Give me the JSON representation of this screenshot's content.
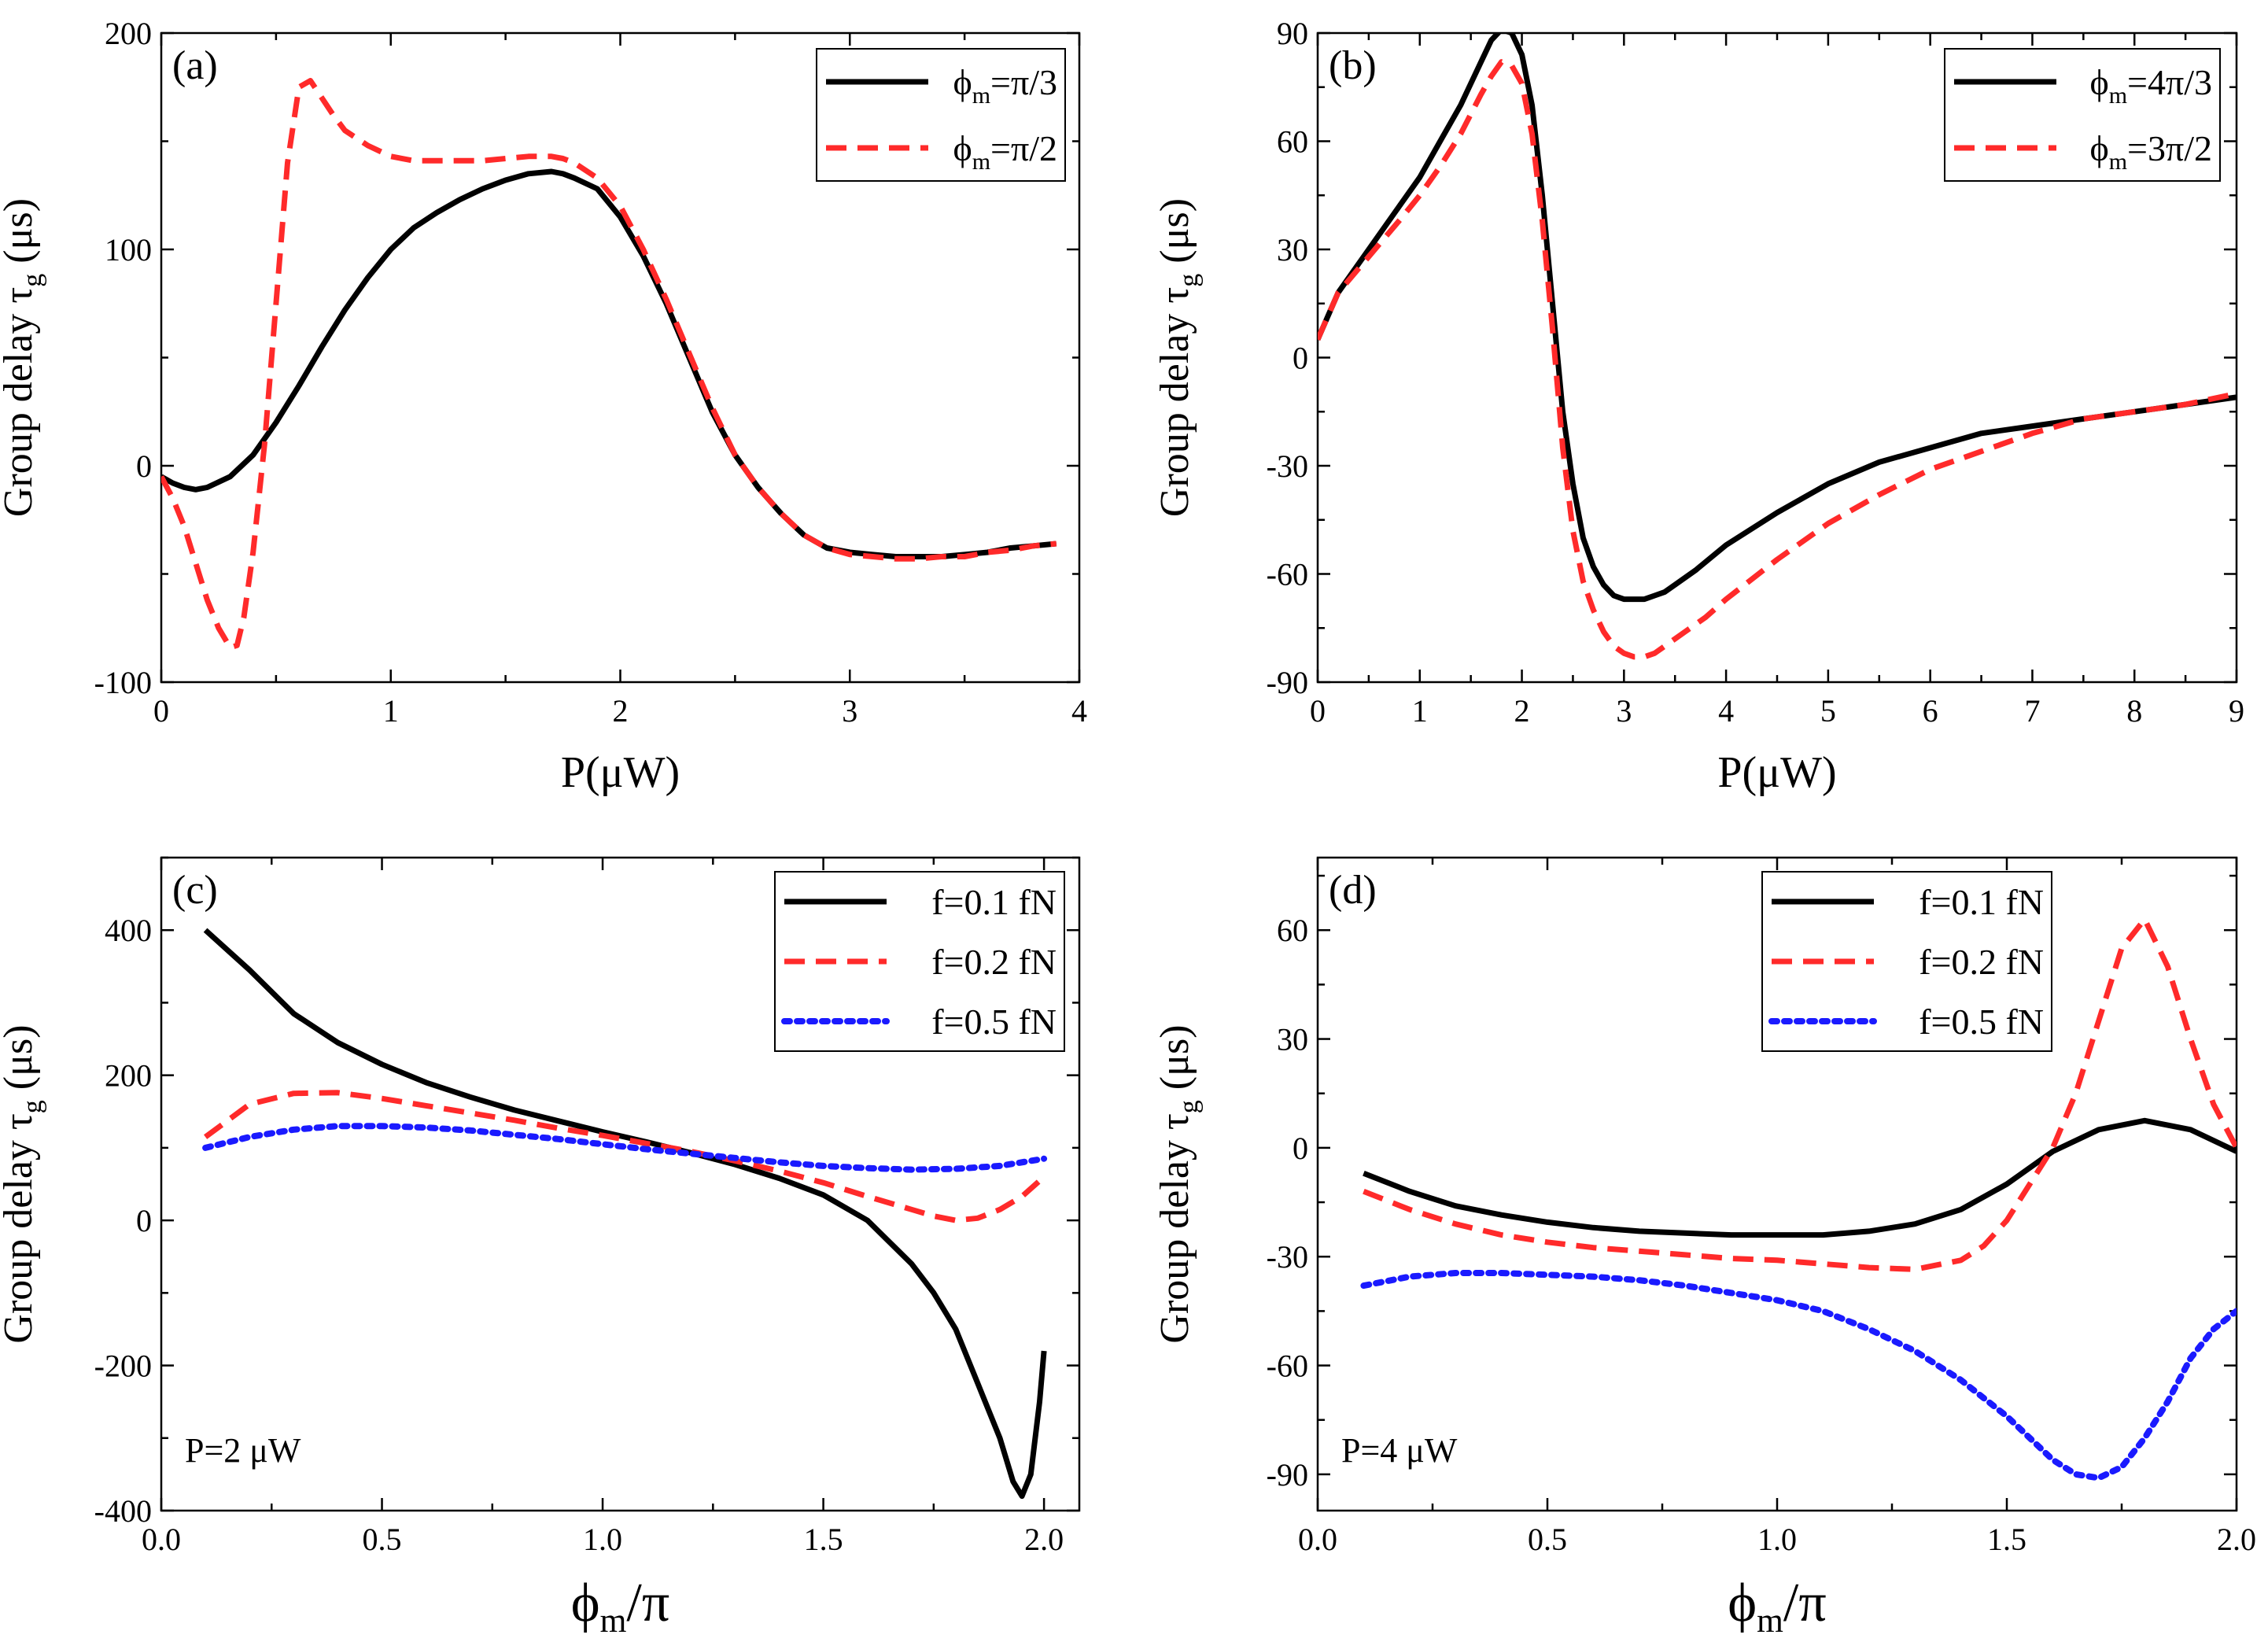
{
  "chart_data": [
    {
      "panel_label": "(a)",
      "type": "line",
      "xlabel": "P(μW)",
      "ylabel_main": "Group delay τ",
      "ylabel_sub": "g",
      "ylabel_unit": " (μs)",
      "xlim": [
        0,
        4
      ],
      "ylim": [
        -100,
        200
      ],
      "xticks": [
        0,
        1,
        2,
        3,
        4
      ],
      "xtick_labels": [
        "0",
        "1",
        "2",
        "3",
        "4"
      ],
      "yticks": [
        -100,
        0,
        100,
        200
      ],
      "ytick_labels": [
        "-100",
        "0",
        "100",
        "200"
      ],
      "legend_position": "top-right",
      "series": [
        {
          "name": "ϕm=π/3",
          "name_main": "ϕ",
          "name_sub": "m",
          "name_rest": "=π/3",
          "color": "#000000",
          "style": "solid",
          "x": [
            0,
            0.05,
            0.1,
            0.15,
            0.2,
            0.3,
            0.4,
            0.5,
            0.6,
            0.7,
            0.8,
            0.9,
            1.0,
            1.1,
            1.2,
            1.3,
            1.4,
            1.5,
            1.6,
            1.7,
            1.75,
            1.8,
            1.9,
            2.0,
            2.1,
            2.2,
            2.3,
            2.4,
            2.5,
            2.6,
            2.7,
            2.8,
            2.9,
            3.0,
            3.1,
            3.2,
            3.3,
            3.4,
            3.5,
            3.6,
            3.7,
            3.8,
            3.9
          ],
          "y": [
            -5,
            -8,
            -10,
            -11,
            -10,
            -5,
            5,
            20,
            37,
            55,
            72,
            87,
            100,
            110,
            117,
            123,
            128,
            132,
            135,
            136,
            135,
            133,
            128,
            115,
            97,
            75,
            50,
            25,
            5,
            -10,
            -22,
            -32,
            -38,
            -40,
            -41,
            -42,
            -42,
            -42,
            -41,
            -40,
            -38,
            -37,
            -36
          ]
        },
        {
          "name": "ϕm=π/2",
          "name_main": "ϕ",
          "name_sub": "m",
          "name_rest": "=π/2",
          "color": "#ff2a2a",
          "style": "dashed",
          "x": [
            0,
            0.05,
            0.1,
            0.15,
            0.2,
            0.25,
            0.3,
            0.33,
            0.36,
            0.4,
            0.45,
            0.5,
            0.55,
            0.6,
            0.65,
            0.7,
            0.75,
            0.8,
            0.9,
            1.0,
            1.1,
            1.2,
            1.3,
            1.4,
            1.5,
            1.6,
            1.7,
            1.75,
            1.8,
            1.9,
            2.0,
            2.1,
            2.2,
            2.3,
            2.4,
            2.5,
            2.6,
            2.7,
            2.8,
            2.9,
            3.0,
            3.1,
            3.2,
            3.3,
            3.4,
            3.5,
            3.6,
            3.7,
            3.8,
            3.9
          ],
          "y": [
            -5,
            -15,
            -28,
            -45,
            -62,
            -75,
            -84,
            -83,
            -70,
            -40,
            10,
            75,
            140,
            175,
            178,
            170,
            162,
            155,
            148,
            143,
            141,
            141,
            141,
            141,
            142,
            143,
            143,
            142,
            140,
            133,
            120,
            100,
            77,
            52,
            27,
            5,
            -10,
            -22,
            -32,
            -38,
            -41,
            -42,
            -43,
            -43,
            -42,
            -42,
            -40,
            -39,
            -37,
            -36
          ]
        }
      ]
    },
    {
      "panel_label": "(b)",
      "type": "line",
      "xlabel": "P(μW)",
      "ylabel_main": "Group delay τ",
      "ylabel_sub": "g",
      "ylabel_unit": " (μs)",
      "xlim": [
        0,
        9
      ],
      "ylim": [
        -90,
        90
      ],
      "xticks": [
        0,
        1,
        2,
        3,
        4,
        5,
        6,
        7,
        8,
        9
      ],
      "xtick_labels": [
        "0",
        "1",
        "2",
        "3",
        "4",
        "5",
        "6",
        "7",
        "8",
        "9"
      ],
      "yticks": [
        -90,
        -60,
        -30,
        0,
        30,
        60,
        90
      ],
      "ytick_labels": [
        "-90",
        "-60",
        "-30",
        "0",
        "30",
        "60",
        "90"
      ],
      "legend_position": "top-right",
      "series": [
        {
          "name": "ϕm=4π/3",
          "name_main": "ϕ",
          "name_sub": "m",
          "name_rest": "=4π/3",
          "color": "#000000",
          "style": "solid",
          "x": [
            0,
            0.2,
            0.5,
            0.8,
            1.0,
            1.2,
            1.4,
            1.6,
            1.7,
            1.8,
            1.9,
            2.0,
            2.1,
            2.2,
            2.3,
            2.4,
            2.5,
            2.6,
            2.7,
            2.8,
            2.9,
            3.0,
            3.1,
            3.2,
            3.3,
            3.4,
            3.5,
            3.7,
            4.0,
            4.5,
            5.0,
            5.5,
            6.0,
            6.5,
            7.0,
            7.5,
            8.0,
            8.5,
            9.0
          ],
          "y": [
            5,
            18,
            30,
            42,
            50,
            60,
            70,
            82,
            88,
            91,
            90,
            84,
            70,
            45,
            15,
            -15,
            -35,
            -50,
            -58,
            -63,
            -66,
            -67,
            -67,
            -67,
            -66,
            -65,
            -63,
            -59,
            -52,
            -43,
            -35,
            -29,
            -25,
            -21,
            -19,
            -17,
            -15,
            -13,
            -11
          ]
        },
        {
          "name": "ϕm=3π/2",
          "name_main": "ϕ",
          "name_sub": "m",
          "name_rest": "=3π/2",
          "color": "#ff2a2a",
          "style": "dashed",
          "x": [
            0,
            0.2,
            0.5,
            0.8,
            1.0,
            1.2,
            1.4,
            1.6,
            1.7,
            1.8,
            1.9,
            2.0,
            2.1,
            2.2,
            2.3,
            2.4,
            2.5,
            2.6,
            2.7,
            2.8,
            2.9,
            3.0,
            3.1,
            3.2,
            3.3,
            3.4,
            3.6,
            3.8,
            4.0,
            4.5,
            5.0,
            5.5,
            6.0,
            6.5,
            7.0,
            7.5,
            8.0,
            8.5,
            9.0
          ],
          "y": [
            5,
            18,
            28,
            38,
            45,
            53,
            62,
            73,
            78,
            82,
            81,
            76,
            62,
            38,
            8,
            -25,
            -48,
            -62,
            -70,
            -76,
            -80,
            -82,
            -83,
            -83,
            -82,
            -80,
            -76,
            -72,
            -67,
            -56,
            -46,
            -38,
            -31,
            -26,
            -21,
            -17,
            -15,
            -13,
            -10
          ]
        }
      ]
    },
    {
      "panel_label": "(c)",
      "type": "line",
      "xlabel_main": "ϕ",
      "xlabel_sub": "m",
      "xlabel_rest": "/π",
      "ylabel_main": "Group delay τ",
      "ylabel_sub": "g",
      "ylabel_unit": " (μs)",
      "xlim": [
        0,
        2.08
      ],
      "ylim": [
        -400,
        500
      ],
      "xticks": [
        0,
        0.5,
        1.0,
        1.5,
        2.0
      ],
      "xtick_labels": [
        "0.0",
        "0.5",
        "1.0",
        "1.5",
        "2.0"
      ],
      "yticks": [
        -400,
        -200,
        0,
        200,
        400
      ],
      "ytick_labels": [
        "-400",
        "-200",
        "0",
        "200",
        "400"
      ],
      "annotation": "P=2 μW",
      "legend_position": "top-right",
      "series": [
        {
          "name": "f=0.1 fN",
          "color": "#000000",
          "style": "solid",
          "x": [
            0.1,
            0.2,
            0.3,
            0.4,
            0.5,
            0.6,
            0.7,
            0.8,
            0.9,
            1.0,
            1.1,
            1.2,
            1.3,
            1.4,
            1.5,
            1.6,
            1.7,
            1.75,
            1.8,
            1.85,
            1.9,
            1.93,
            1.95,
            1.97,
            1.99,
            2.0
          ],
          "y": [
            400,
            345,
            285,
            245,
            215,
            190,
            170,
            152,
            137,
            122,
            108,
            93,
            77,
            58,
            35,
            0,
            -60,
            -100,
            -150,
            -225,
            -300,
            -360,
            -380,
            -350,
            -250,
            -180
          ]
        },
        {
          "name": "f=0.2 fN",
          "color": "#ff2a2a",
          "style": "dashed",
          "x": [
            0.1,
            0.2,
            0.3,
            0.4,
            0.5,
            0.6,
            0.7,
            0.8,
            0.9,
            1.0,
            1.1,
            1.2,
            1.3,
            1.4,
            1.5,
            1.6,
            1.7,
            1.75,
            1.8,
            1.85,
            1.9,
            1.95,
            2.0
          ],
          "y": [
            115,
            160,
            175,
            176,
            168,
            158,
            148,
            138,
            127,
            117,
            106,
            95,
            82,
            68,
            52,
            33,
            15,
            6,
            0,
            3,
            15,
            33,
            60
          ]
        },
        {
          "name": "f=0.5 fN",
          "color": "#1a1aff",
          "style": "dotted",
          "x": [
            0.1,
            0.2,
            0.3,
            0.4,
            0.5,
            0.6,
            0.7,
            0.8,
            0.9,
            1.0,
            1.1,
            1.2,
            1.3,
            1.4,
            1.5,
            1.6,
            1.7,
            1.8,
            1.9,
            2.0
          ],
          "y": [
            100,
            115,
            125,
            130,
            130,
            128,
            124,
            118,
            112,
            105,
            98,
            92,
            86,
            80,
            75,
            72,
            70,
            71,
            75,
            85
          ]
        }
      ]
    },
    {
      "panel_label": "(d)",
      "type": "line",
      "xlabel_main": "ϕ",
      "xlabel_sub": "m",
      "xlabel_rest": "/π",
      "ylabel_main": "Group delay τ",
      "ylabel_sub": "g",
      "ylabel_unit": " (μs)",
      "xlim": [
        0,
        2.0
      ],
      "ylim": [
        -100,
        80
      ],
      "xticks": [
        0,
        0.5,
        1.0,
        1.5,
        2.0
      ],
      "xtick_labels": [
        "0.0",
        "0.5",
        "1.0",
        "1.5",
        "2.0"
      ],
      "yticks": [
        -90,
        -60,
        -30,
        0,
        30,
        60
      ],
      "ytick_labels": [
        "-90",
        "-60",
        "-30",
        "0",
        "30",
        "60"
      ],
      "annotation": "P=4 μW",
      "legend_position": "top-right",
      "series": [
        {
          "name": "f=0.1 fN",
          "color": "#000000",
          "style": "solid",
          "x": [
            0.1,
            0.2,
            0.3,
            0.4,
            0.5,
            0.6,
            0.7,
            0.8,
            0.9,
            1.0,
            1.1,
            1.2,
            1.3,
            1.4,
            1.5,
            1.6,
            1.7,
            1.8,
            1.9,
            2.0
          ],
          "y": [
            -7,
            -12,
            -16,
            -18.5,
            -20.5,
            -22,
            -23,
            -23.5,
            -24,
            -24,
            -24,
            -23,
            -21,
            -17,
            -10,
            -1,
            5,
            7.5,
            5,
            -1
          ]
        },
        {
          "name": "f=0.2 fN",
          "color": "#ff2a2a",
          "style": "dashed",
          "x": [
            0.1,
            0.2,
            0.3,
            0.4,
            0.5,
            0.6,
            0.7,
            0.8,
            0.9,
            1.0,
            1.1,
            1.2,
            1.3,
            1.4,
            1.45,
            1.5,
            1.55,
            1.6,
            1.65,
            1.7,
            1.75,
            1.8,
            1.85,
            1.9,
            1.95,
            2.0
          ],
          "y": [
            -12,
            -17,
            -21,
            -24,
            -26,
            -27.5,
            -28.5,
            -29.5,
            -30.5,
            -31,
            -32,
            -33,
            -33.5,
            -31,
            -27,
            -20,
            -10,
            0,
            15,
            35,
            55,
            63,
            50,
            30,
            12,
            0
          ]
        },
        {
          "name": "f=0.5 fN",
          "color": "#1a1aff",
          "style": "dotted",
          "x": [
            0.1,
            0.2,
            0.3,
            0.4,
            0.5,
            0.6,
            0.7,
            0.8,
            0.9,
            1.0,
            1.1,
            1.2,
            1.3,
            1.4,
            1.5,
            1.6,
            1.65,
            1.7,
            1.75,
            1.8,
            1.85,
            1.9,
            1.95,
            2.0
          ],
          "y": [
            -38,
            -35.5,
            -34.5,
            -34.5,
            -35,
            -35.5,
            -36.5,
            -38,
            -40,
            -42,
            -45,
            -50,
            -56,
            -64,
            -74,
            -86,
            -90,
            -91,
            -88,
            -80,
            -70,
            -58,
            -50,
            -45
          ]
        }
      ]
    }
  ]
}
